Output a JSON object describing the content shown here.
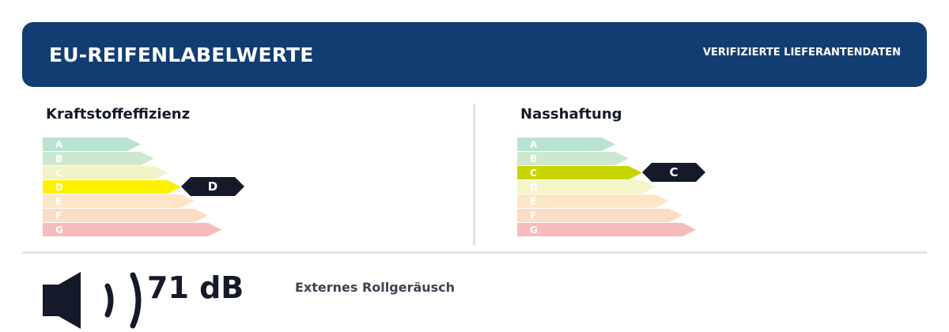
{
  "header": {
    "title": "EU-REIFENLABELWERTE",
    "subtitle": "VERIFIZIERTE LIEFERANTENDATEN",
    "background_color": "#123d72"
  },
  "fuel_efficiency": {
    "title": "Kraftstoffeffizienz",
    "rating": "D",
    "classes": [
      {
        "label": "A",
        "color": "#b8e3d4"
      },
      {
        "label": "B",
        "color": "#cde8ce"
      },
      {
        "label": "C",
        "color": "#f0f4c6"
      },
      {
        "label": "D",
        "color": "#fff000"
      },
      {
        "label": "E",
        "color": "#fde6c8"
      },
      {
        "label": "F",
        "color": "#fbdcc4"
      },
      {
        "label": "G",
        "color": "#f6bcbc"
      }
    ]
  },
  "wet_grip": {
    "title": "Nasshaftung",
    "rating": "C",
    "classes": [
      {
        "label": "A",
        "color": "#b8e3d4"
      },
      {
        "label": "B",
        "color": "#cde8ce"
      },
      {
        "label": "C",
        "color": "#c8d600"
      },
      {
        "label": "D",
        "color": "#f4f6c8"
      },
      {
        "label": "E",
        "color": "#fde6c8"
      },
      {
        "label": "F",
        "color": "#fbdcc4"
      },
      {
        "label": "G",
        "color": "#f6bcbc"
      }
    ]
  },
  "noise": {
    "value": "71 dB",
    "caption": "Externes Rollgeräusch",
    "icon": "speaker-icon",
    "sound_waves": 2
  },
  "colors": {
    "marker": "#151a2a",
    "divider": "#dfe3e8"
  }
}
